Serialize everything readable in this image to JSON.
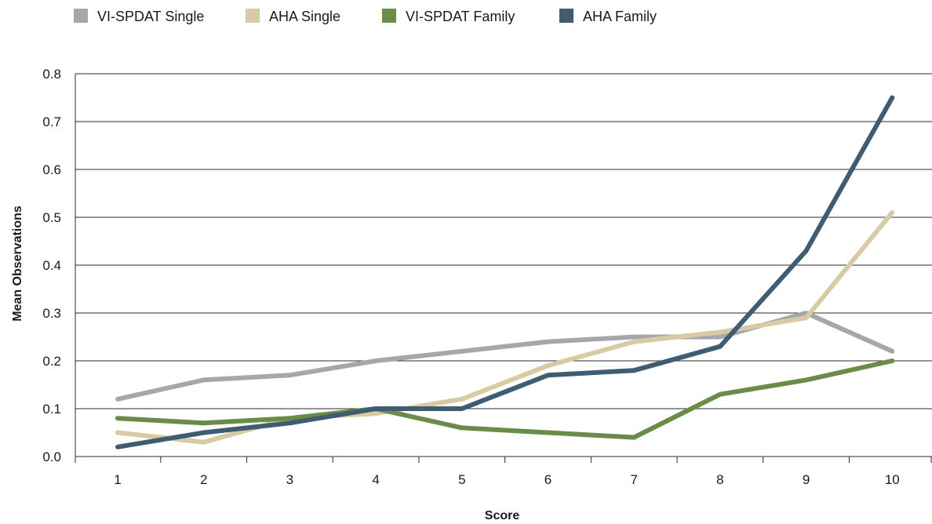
{
  "chart_data": {
    "type": "line",
    "title": "",
    "xlabel": "Score",
    "ylabel": "Mean Observations",
    "x": [
      "1",
      "2",
      "3",
      "4",
      "5",
      "6",
      "7",
      "8",
      "9",
      "10"
    ],
    "ylim": [
      0,
      0.8
    ],
    "yticks": [
      "0.0",
      "0.1",
      "0.2",
      "0.3",
      "0.4",
      "0.5",
      "0.6",
      "0.7",
      "0.8"
    ],
    "grid": "horizontal",
    "legend_position": "top-left",
    "series": [
      {
        "name": "VI-SPDAT Single",
        "color": "#a7a6aa",
        "values": [
          0.12,
          0.16,
          0.17,
          0.2,
          0.22,
          0.24,
          0.25,
          0.25,
          0.3,
          0.22
        ]
      },
      {
        "name": "AHA Single",
        "color": "#d8cba4",
        "values": [
          0.05,
          0.03,
          0.08,
          0.09,
          0.12,
          0.19,
          0.24,
          0.26,
          0.29,
          0.51
        ]
      },
      {
        "name": "VI-SPDAT Family",
        "color": "#6a8c49",
        "values": [
          0.08,
          0.07,
          0.08,
          0.1,
          0.06,
          0.05,
          0.04,
          0.13,
          0.16,
          0.2
        ]
      },
      {
        "name": "AHA Family",
        "color": "#3f5c70",
        "values": [
          0.02,
          0.05,
          0.07,
          0.1,
          0.1,
          0.17,
          0.18,
          0.23,
          0.43,
          0.75
        ]
      }
    ]
  }
}
